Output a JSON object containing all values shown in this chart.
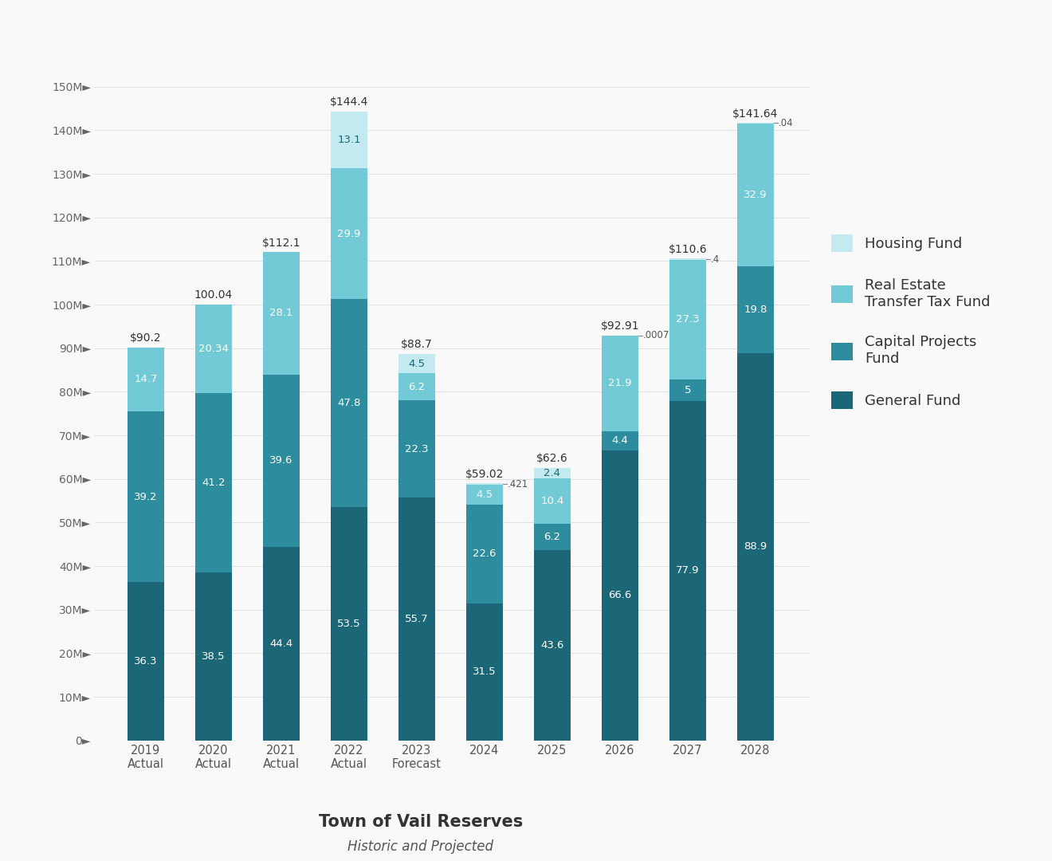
{
  "categories": [
    "2019\nActual",
    "2020\nActual",
    "2021\nActual",
    "2022\nActual",
    "2023\nForecast",
    "2024",
    "2025",
    "2026",
    "2027",
    "2028"
  ],
  "general_fund": [
    36.3,
    38.5,
    44.4,
    53.5,
    55.7,
    31.5,
    43.6,
    66.6,
    77.9,
    88.9
  ],
  "capital_projects": [
    39.2,
    41.2,
    39.6,
    47.8,
    22.3,
    22.6,
    6.2,
    4.4,
    5.0,
    19.8
  ],
  "rett_fund": [
    14.7,
    20.34,
    28.1,
    29.9,
    6.2,
    4.5,
    10.4,
    21.9,
    27.3,
    32.9
  ],
  "housing_fund": [
    0.0,
    0.0,
    0.0,
    13.1,
    4.5,
    0.421,
    2.4,
    0.0007,
    0.4,
    0.04
  ],
  "totals": [
    "$90.2",
    "100.04",
    "$112.1",
    "$144.4",
    "$88.7",
    "$59.02",
    "$62.6",
    "$92.91",
    "$110.6",
    "$141.64"
  ],
  "bar_labels_gf": [
    "36.3",
    "38.5",
    "44.4",
    "53.5",
    "55.7",
    "31.5",
    "43.6",
    "66.6",
    "77.9",
    "88.9"
  ],
  "bar_labels_cp": [
    "39.2",
    "41.2",
    "39.6",
    "47.8",
    "22.3",
    "22.6",
    "6.2",
    "4.4",
    "5",
    "19.8"
  ],
  "bar_labels_rett": [
    "14.7",
    "20.34",
    "28.1",
    "29.9",
    "6.2",
    "4.5",
    "10.4",
    "21.9",
    "27.3",
    "32.9"
  ],
  "bar_labels_hf": [
    "",
    "",
    "",
    "13.1",
    "4.5",
    ".421",
    "2.4",
    ".0007",
    ".4",
    ".04"
  ],
  "color_general": "#1b6777",
  "color_capital": "#2d8d9e",
  "color_rett": "#72cad6",
  "color_housing": "#c2eaf0",
  "legend_labels": [
    "Housing Fund",
    "Real Estate\nTransfer Tax Fund",
    "Capital Projects\nFund",
    "General Fund"
  ],
  "legend_colors": [
    "#c2eaf0",
    "#72cad6",
    "#2d8d9e",
    "#1b6777"
  ],
  "title_main": "Town of Vail Reserves",
  "title_sub": "Historic and Projected",
  "ylim": [
    0,
    160
  ],
  "yticks": [
    0,
    10,
    20,
    30,
    40,
    50,
    60,
    70,
    80,
    90,
    100,
    110,
    120,
    130,
    140,
    150
  ],
  "ytick_labels": [
    "0►",
    "10M►",
    "20M►",
    "30M►",
    "40M►",
    "50M►",
    "60M►",
    "70M►",
    "80M►",
    "90M►",
    "100M►",
    "110M►",
    "120M►",
    "130M►",
    "140M►",
    "150M►"
  ],
  "background_color": "#f9f9f9"
}
